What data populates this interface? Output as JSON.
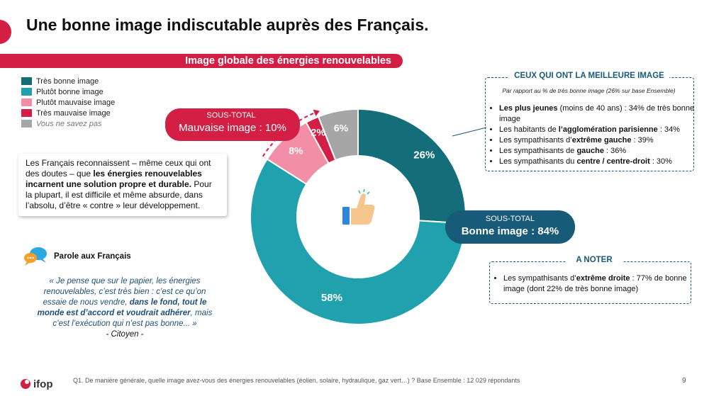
{
  "title": "Une bonne image indiscutable auprès des Français.",
  "section_title": "Image globale des énergies renouvelables",
  "legend": [
    {
      "label": "Très bonne image",
      "color": "#146e7a"
    },
    {
      "label": "Plutôt bonne image",
      "color": "#20a1ad"
    },
    {
      "label": "Plutôt mauvaise image",
      "color": "#f28ea5"
    },
    {
      "label": "Très mauvaise image",
      "color": "#d31f44"
    },
    {
      "label": "Vous ne savez pas",
      "color": "#a6a6a6"
    }
  ],
  "chart_data": {
    "type": "pie",
    "title": "Image globale des énergies renouvelables",
    "categories": [
      "Très bonne image",
      "Plutôt bonne image",
      "Plutôt mauvaise image",
      "Très mauvaise image",
      "Vous ne savez pas"
    ],
    "values": [
      26,
      58,
      8,
      2,
      6
    ],
    "labels": [
      "26%",
      "58%",
      "8%",
      "2%",
      "6%"
    ],
    "colors": [
      "#146e7a",
      "#20a1ad",
      "#f28ea5",
      "#d31f44",
      "#a6a6a6"
    ],
    "subtotals": [
      {
        "top": "SOUS-TOTAL",
        "label": "Mauvaise image : 10%"
      },
      {
        "top": "SOUS-TOTAL",
        "label": "Bonne image : 84%"
      }
    ]
  },
  "callout": {
    "text_1": "Les Français reconnaissent – même ceux qui ont des doutes – que ",
    "text_bold": "les énergies renouvelables incarnent une solution propre et durable.",
    "text_2": " Pour la plupart, il est difficile et même absurde, dans l’absolu, d’être « contre » leur développement."
  },
  "voices": {
    "title": "Parole aux Français",
    "quote_1": "« Je pense que sur le papier, les énergies renouvelables, c’est très bien : c’est ce qu’on essaie de nous vendre, ",
    "quote_bold": "dans le fond, tout le monde est d’accord et voudrait adhérer",
    "quote_2": ", mais c’est l’exécution qui n’est pas bonne... »",
    "author": "- Citoyen -"
  },
  "best": {
    "title": "CEUX QUI ONT LA MEILLEURE IMAGE",
    "subtitle": "Par rapport au % de très bonne image (26% sur base Ensemble)",
    "items": [
      {
        "pre": "",
        "bold": "Les plus jeunes",
        "post": " (moins de 40 ans) : 34% de très bonne image"
      },
      {
        "pre": "Les habitants de ",
        "bold": "l’agglomération parisienne",
        "post": " : 34%"
      },
      {
        "pre": "Les sympathisants d’",
        "bold": "extrême gauche",
        "post": " : 39%"
      },
      {
        "pre": "Les sympathisants de ",
        "bold": "gauche",
        "post": " : 36%"
      },
      {
        "pre": "Les sympathisants du ",
        "bold": "centre / centre-droit",
        "post": " : 30%"
      }
    ]
  },
  "note": {
    "title": "A NOTER",
    "pre": "Les sympathisants d’",
    "bold": "extrême droite",
    "post": " : 77% de bonne image (dont 22% de très bonne image)"
  },
  "footer": {
    "logo": "ifop",
    "question": "Q1. De manière générale, quelle image avez-vous des énergies renouvelables (éolien, solaire, hydraulique, gaz vert…) ? Base Ensemble : 12 029 répondants",
    "page": "9"
  }
}
